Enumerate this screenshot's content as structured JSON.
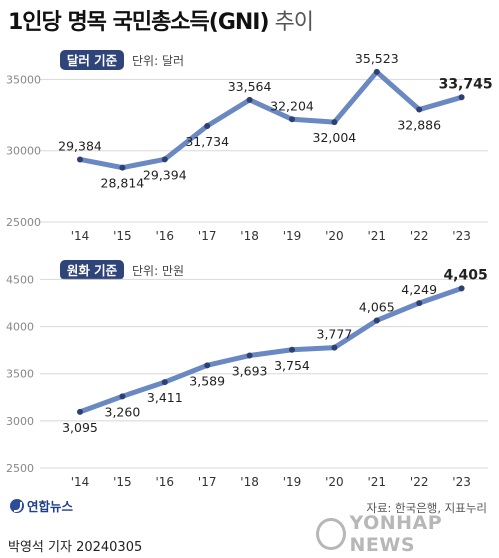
{
  "title": {
    "bold": "1인당 명목 국민총소득(GNI)",
    "light": "추이"
  },
  "footer": {
    "source": "자료: 한국은행, 지표누리",
    "author": "박영석 기자  20240305",
    "logo": "연합뉴스",
    "watermark": "YONHAP NEWS"
  },
  "colors": {
    "line": "#6a88c2",
    "point": "#2e3f73",
    "badge": "#2f4478",
    "grid": "#d8d8d8"
  },
  "chart_data": [
    {
      "type": "line",
      "badge": "달러 기준",
      "unit_label": "단위: 달러",
      "categories": [
        "'14",
        "'15",
        "'16",
        "'17",
        "'18",
        "'19",
        "'20",
        "'21",
        "'22",
        "'23"
      ],
      "values": [
        29384,
        28814,
        29394,
        31734,
        33564,
        32204,
        32004,
        35523,
        32886,
        33745
      ],
      "value_labels": [
        "29,384",
        "28,814",
        "29,394",
        "31,734",
        "33,564",
        "32,204",
        "32,004",
        "35,523",
        "32,886",
        "33,745"
      ],
      "yticks": [
        "25000",
        "30000",
        "35000"
      ],
      "ylim": [
        25000,
        36500
      ],
      "grid": true
    },
    {
      "type": "line",
      "badge": "원화 기준",
      "unit_label": "단위: 만원",
      "categories": [
        "'14",
        "'15",
        "'16",
        "'17",
        "'18",
        "'19",
        "'20",
        "'21",
        "'22",
        "'23"
      ],
      "values": [
        3095,
        3260,
        3411,
        3589,
        3693,
        3754,
        3777,
        4065,
        4249,
        4405
      ],
      "value_labels": [
        "3,095",
        "3,260",
        "3,411",
        "3,589",
        "3,693",
        "3,754",
        "3,777",
        "4,065",
        "4,249",
        "4,405"
      ],
      "yticks": [
        "2500",
        "3000",
        "3500",
        "4000",
        "4500"
      ],
      "ylim": [
        2500,
        4600
      ],
      "grid": true
    }
  ]
}
